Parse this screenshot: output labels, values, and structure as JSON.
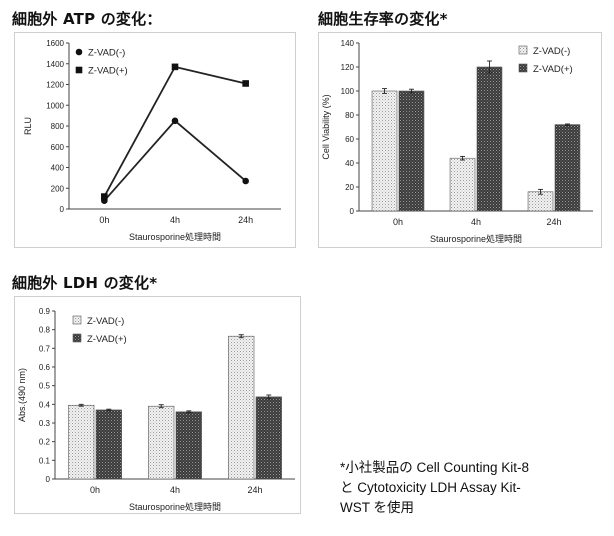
{
  "titles": {
    "atp": "細胞外 ATP の変化：",
    "viability": "細胞生存率の変化*",
    "ldh": "細胞外 LDH の変化*"
  },
  "footnote": {
    "line1": "*小社製品の Cell Counting Kit-8",
    "line2": "と Cytotoxicity LDH Assay Kit-",
    "line3": "WST を使用"
  },
  "colors": {
    "marker": "#111111",
    "bar_light": "#d6d6d6",
    "bar_dark": "#3a3a3a",
    "frame": "#cfcfcf"
  },
  "chart_data": [
    {
      "type": "line",
      "ylabel": "RLU",
      "xlabel": "Staurosporine処理時間",
      "categories": [
        "0h",
        "4h",
        "24h"
      ],
      "ylim": [
        0,
        1600
      ],
      "yticks": [
        "0",
        "200",
        "400",
        "600",
        "800",
        "1000",
        "1200",
        "1400",
        "1600"
      ],
      "legend_position": "top-left",
      "series": [
        {
          "name": "Z-VAD(-)",
          "marker": "circle",
          "values": [
            80,
            850,
            270
          ]
        },
        {
          "name": "Z-VAD(+)",
          "marker": "square",
          "values": [
            120,
            1370,
            1210
          ]
        }
      ]
    },
    {
      "type": "bar",
      "ylabel": "Cell Viability (%)",
      "xlabel": "Staurosporine処理時間",
      "categories": [
        "0h",
        "4h",
        "24h"
      ],
      "ylim": [
        0,
        140
      ],
      "yticks": [
        "0",
        "20",
        "40",
        "60",
        "80",
        "100",
        "120",
        "140"
      ],
      "legend_position": "top-right",
      "series": [
        {
          "name": "Z-VAD(-)",
          "values": [
            100,
            44,
            16
          ],
          "errors": [
            2,
            1.5,
            2
          ]
        },
        {
          "name": "Z-VAD(+)",
          "values": [
            100,
            120,
            72
          ],
          "errors": [
            1.5,
            5,
            0.5
          ]
        }
      ]
    },
    {
      "type": "bar",
      "ylabel": "Abs.(490 nm)",
      "xlabel": "Staurosporine処理時間",
      "categories": [
        "0h",
        "4h",
        "24h"
      ],
      "ylim": [
        0,
        0.9
      ],
      "yticks": [
        "0",
        "0.1",
        "0.2",
        "0.3",
        "0.4",
        "0.5",
        "0.6",
        "0.7",
        "0.8",
        "0.9"
      ],
      "legend_position": "top-left",
      "series": [
        {
          "name": "Z-VAD(-)",
          "values": [
            0.395,
            0.39,
            0.765
          ],
          "errors": [
            0.005,
            0.008,
            0.008
          ]
        },
        {
          "name": "Z-VAD(+)",
          "values": [
            0.37,
            0.36,
            0.44
          ],
          "errors": [
            0.004,
            0.005,
            0.01
          ]
        }
      ]
    }
  ]
}
